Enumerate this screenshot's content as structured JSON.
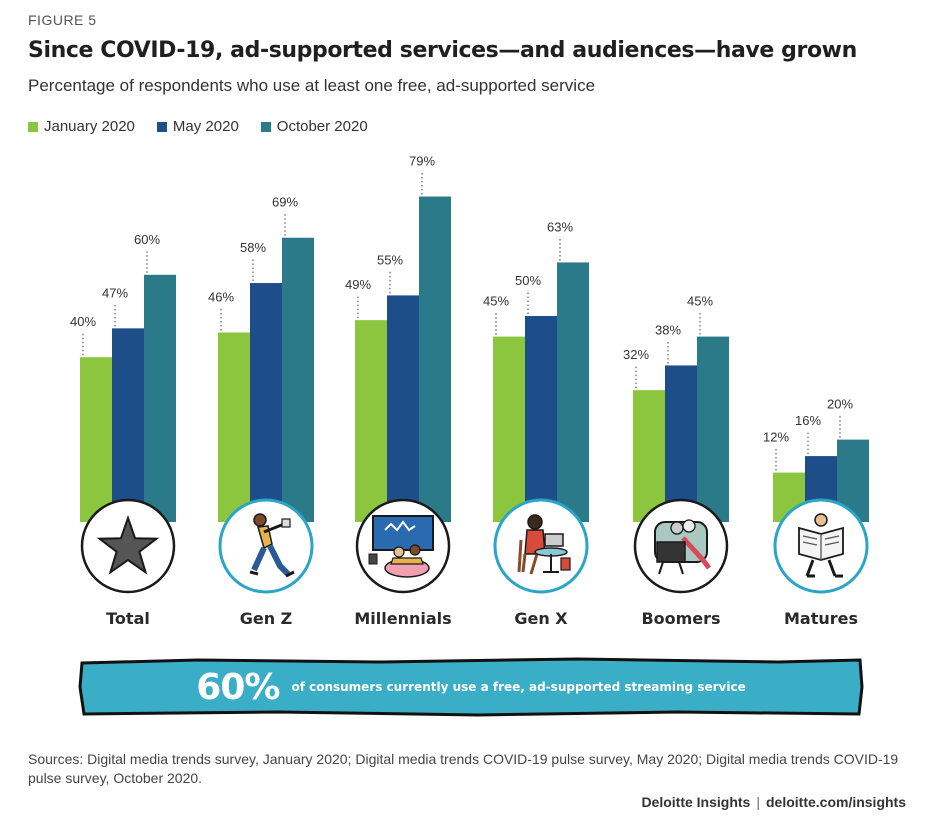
{
  "figure_label": "FIGURE 5",
  "chart_data": {
    "type": "bar",
    "title": "Since COVID-19, ad-supported services—and audiences—have grown",
    "subtitle": "Percentage of respondents who use at least one free, ad-supported service",
    "categories": [
      "Total",
      "Gen Z",
      "Millennials",
      "Gen X",
      "Boomers",
      "Matures"
    ],
    "series": [
      {
        "name": "January 2020",
        "color": "#8cc63f",
        "values": [
          40,
          46,
          49,
          45,
          32,
          12
        ]
      },
      {
        "name": "May 2020",
        "color": "#1d4e89",
        "values": [
          47,
          58,
          55,
          50,
          38,
          16
        ]
      },
      {
        "name": "October 2020",
        "color": "#2b7a8a",
        "values": [
          60,
          69,
          79,
          63,
          45,
          20
        ]
      }
    ],
    "value_suffix": "%",
    "ylim": [
      0,
      100
    ],
    "legend_position": "top-left",
    "grid": false,
    "icons": [
      "star-icon",
      "gen-z-dancer-icon",
      "millennials-couch-tv-icon",
      "gen-x-laptop-icon",
      "boomers-tv-armchair-icon",
      "matures-newspaper-icon"
    ]
  },
  "banner": {
    "big_value": "60%",
    "text": "of consumers currently use a free, ad-supported streaming service",
    "color": "#3aaec6"
  },
  "sources": "Sources: Digital media trends survey, January 2020; Digital media trends COVID-19 pulse survey, May 2020; Digital media trends COVID-19 pulse survey, October 2020.",
  "footer": {
    "brand": "Deloitte Insights",
    "separator": "|",
    "url": "deloitte.com/insights"
  }
}
